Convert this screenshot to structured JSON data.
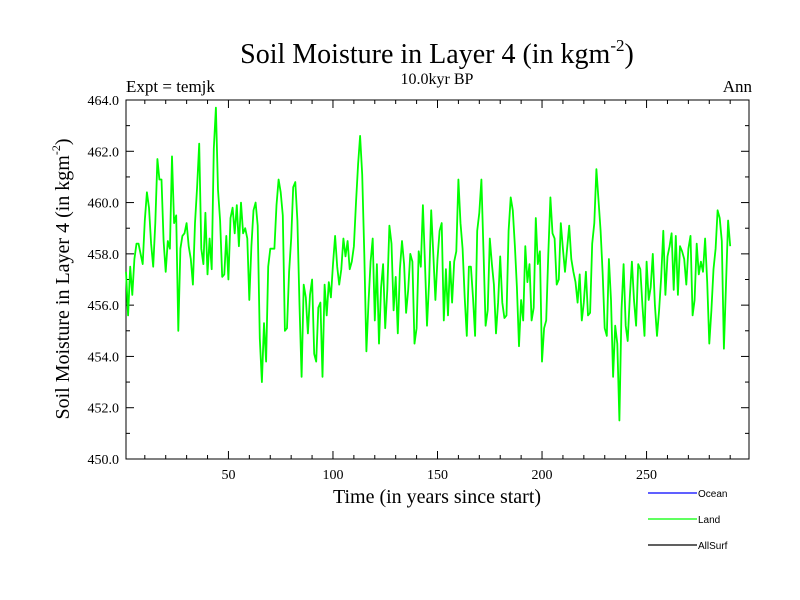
{
  "chart_data": {
    "type": "line",
    "title": "Soil Moisture in Layer 4 (in kgm",
    "title_sup": "-2",
    "title_end": ")",
    "subtitle": "10.0kyr BP",
    "left_label": "Expt = temjk",
    "right_label": "Ann",
    "xlabel": "Time (in years since start)",
    "ylabel": "Soil Moisture in Layer 4 (in kgm",
    "ylabel_sup": "-2",
    "ylabel_end": ")",
    "xlim": [
      1,
      299
    ],
    "ylim": [
      450.0,
      464.0
    ],
    "x_ticks": [
      50,
      100,
      150,
      200,
      250
    ],
    "x_tick_labels": [
      "50",
      "100",
      "150",
      "200",
      "250"
    ],
    "y_ticks": [
      450,
      452,
      454,
      456,
      458,
      460,
      462,
      464
    ],
    "y_tick_labels": [
      "450.0",
      "452.0",
      "454.0",
      "456.0",
      "458.0",
      "460.0",
      "462.0",
      "464.0"
    ],
    "legend": [
      {
        "name": "Ocean",
        "color": "#0000ff"
      },
      {
        "name": "Land",
        "color": "#00ff00"
      },
      {
        "name": "AllSurf",
        "color": "#000000"
      }
    ],
    "series": [
      {
        "name": "Land",
        "color": "#00ff00",
        "x_start": 1,
        "values": [
          457.3,
          455.6,
          457.5,
          456.4,
          457.8,
          458.4,
          458.4,
          458.0,
          457.6,
          459.3,
          460.4,
          459.8,
          458.4,
          457.5,
          459.2,
          461.7,
          460.9,
          460.9,
          458.5,
          457.3,
          458.5,
          458.2,
          461.8,
          459.2,
          459.5,
          455.0,
          458.2,
          458.7,
          458.8,
          459.2,
          458.3,
          457.8,
          456.8,
          459.2,
          460.6,
          462.3,
          458.2,
          457.6,
          459.6,
          457.2,
          458.6,
          457.4,
          462.1,
          463.7,
          460.5,
          459.3,
          457.1,
          457.2,
          458.7,
          457.0,
          459.4,
          459.8,
          458.8,
          459.9,
          458.3,
          460.0,
          458.8,
          459.0,
          458.6,
          456.2,
          458.3,
          459.7,
          460.0,
          459.1,
          454.7,
          453.0,
          455.3,
          453.8,
          457.5,
          458.2,
          458.2,
          458.2,
          459.9,
          460.9,
          460.4,
          459.5,
          455.0,
          455.1,
          457.3,
          458.6,
          460.6,
          460.8,
          459.3,
          456.0,
          453.2,
          456.8,
          456.3,
          454.9,
          456.4,
          457.0,
          454.1,
          453.8,
          455.9,
          456.1,
          453.2,
          456.8,
          455.6,
          456.9,
          456.3,
          457.6,
          458.7,
          457.5,
          456.8,
          457.4,
          458.6,
          457.9,
          458.5,
          457.4,
          457.7,
          458.3,
          460.0,
          461.5,
          462.6,
          461.1,
          458.0,
          454.2,
          456.1,
          457.7,
          458.6,
          455.4,
          457.6,
          454.5,
          456.7,
          457.6,
          455.1,
          456.6,
          459.1,
          458.4,
          455.8,
          457.1,
          454.9,
          457.4,
          458.5,
          457.6,
          455.7,
          456.6,
          458.0,
          457.7,
          454.5,
          455.1,
          458.1,
          457.5,
          459.9,
          457.6,
          455.2,
          456.9,
          459.7,
          458.0,
          456.2,
          457.8,
          458.9,
          459.2,
          455.4,
          457.4,
          455.6,
          457.7,
          456.1,
          457.7,
          458.1,
          460.9,
          459.2,
          458.2,
          456.3,
          454.8,
          457.5,
          457.5,
          456.3,
          454.8,
          458.9,
          459.6,
          460.9,
          458.1,
          455.2,
          455.8,
          458.6,
          457.6,
          456.8,
          454.9,
          456.1,
          457.9,
          456.1,
          455.5,
          455.6,
          458.9,
          460.2,
          459.7,
          458.3,
          456.7,
          454.4,
          456.2,
          455.4,
          458.3,
          456.9,
          457.6,
          455.4,
          455.9,
          459.4,
          457.6,
          458.1,
          453.8,
          455.1,
          455.4,
          458.0,
          460.2,
          458.8,
          458.6,
          456.8,
          457.0,
          459.2,
          458.2,
          457.3,
          458.2,
          459.1,
          457.8,
          457.3,
          456.9,
          456.1,
          457.2,
          455.4,
          456.1,
          457.3,
          455.6,
          455.7,
          458.4,
          459.2,
          461.3,
          460.1,
          458.9,
          457.2,
          455.1,
          454.8,
          457.8,
          456.2,
          453.2,
          455.2,
          454.5,
          451.5,
          455.8,
          457.6,
          455.2,
          454.6,
          456.3,
          457.7,
          456.2,
          455.2,
          457.6,
          457.4,
          456.0,
          454.8,
          457.7,
          456.2,
          456.7,
          458.0,
          456.0,
          454.8,
          455.8,
          457.1,
          458.9,
          456.4,
          457.9,
          458.3,
          458.8,
          456.6,
          458.7,
          456.4,
          458.3,
          458.1,
          457.8,
          456.8,
          458.2,
          458.7,
          455.6,
          456.2,
          458.4,
          457.2,
          457.7,
          457.3,
          458.6,
          456.9,
          454.5,
          455.8,
          457.4,
          458.2,
          459.7,
          459.4,
          458.5,
          454.3,
          456.8,
          459.3,
          458.3
        ]
      }
    ]
  }
}
